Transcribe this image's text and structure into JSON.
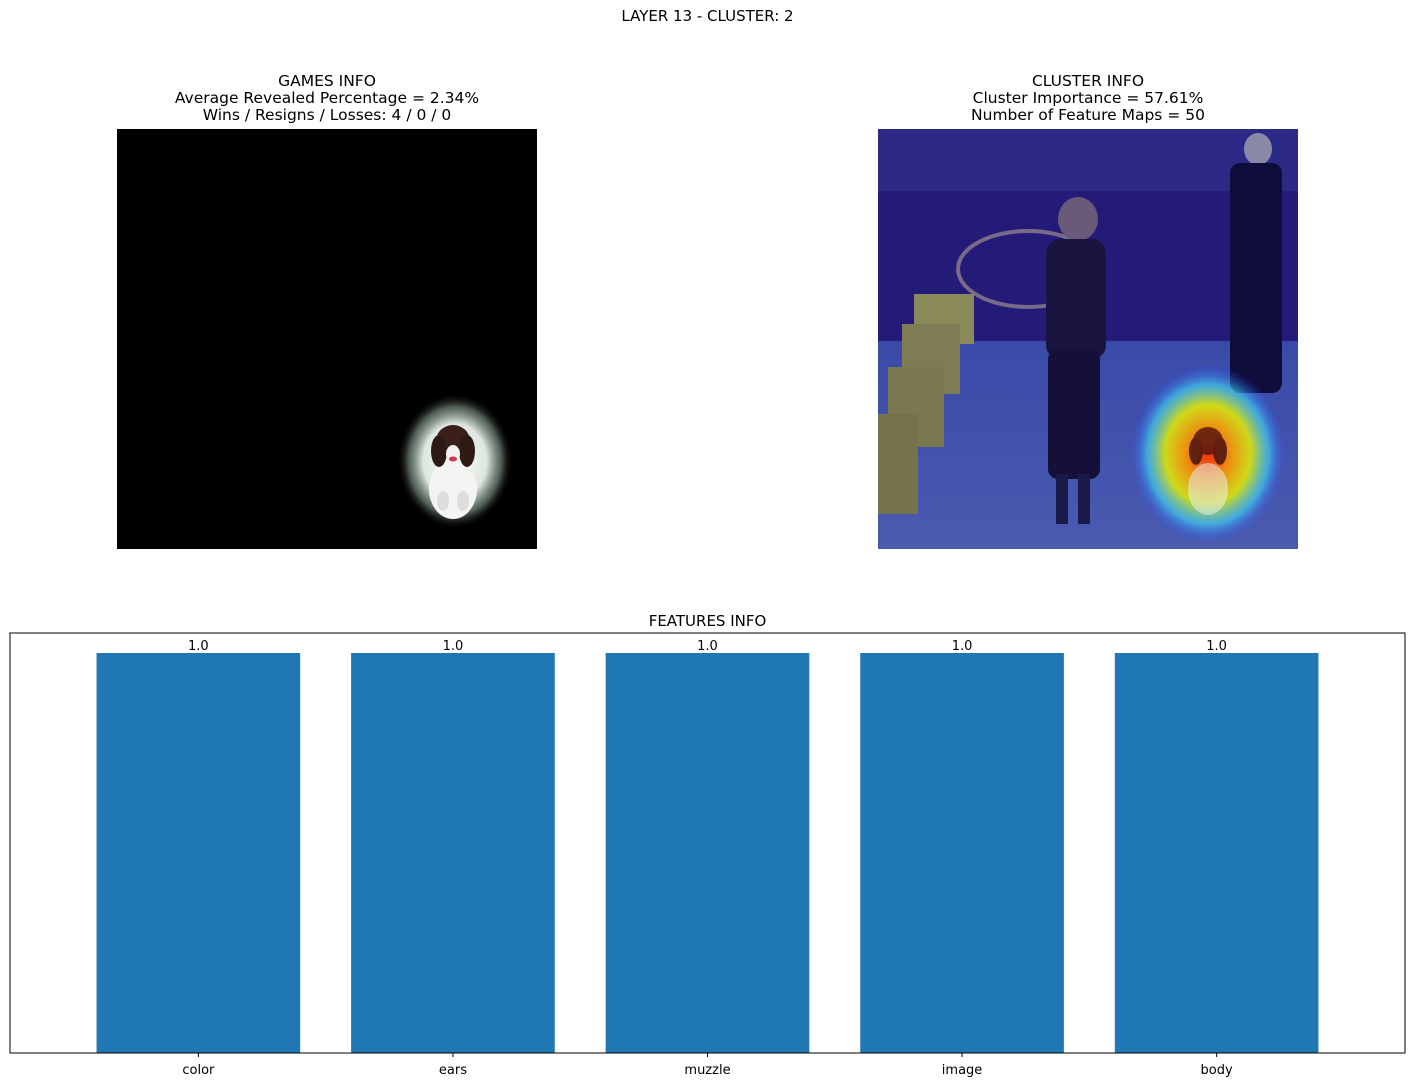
{
  "figure": {
    "suptitle": "LAYER 13 - CLUSTER: 2"
  },
  "games_info": {
    "title": "GAMES INFO",
    "line1": "Average Revealed Percentage = 2.34%",
    "line2": "Wins / Resigns / Losses: 4 / 0 / 0"
  },
  "cluster_info": {
    "title": "CLUSTER INFO",
    "line1": "Cluster Importance = 57.61%",
    "line2": "Number of Feature Maps = 50"
  },
  "colors": {
    "bar": "#1f77b4",
    "games_background": "#000000",
    "cluster_overlay": "#1a1a8c"
  },
  "chart_data": {
    "type": "bar",
    "title": "FEATURES INFO",
    "categories": [
      "color",
      "ears",
      "muzzle",
      "image",
      "body"
    ],
    "values": [
      1.0,
      1.0,
      1.0,
      1.0,
      1.0
    ],
    "value_labels": [
      "1.0",
      "1.0",
      "1.0",
      "1.0",
      "1.0"
    ],
    "xlabel": "",
    "ylabel": "",
    "ylim": [
      0,
      1.05
    ],
    "y_ticks_visible": false,
    "grid": false
  }
}
